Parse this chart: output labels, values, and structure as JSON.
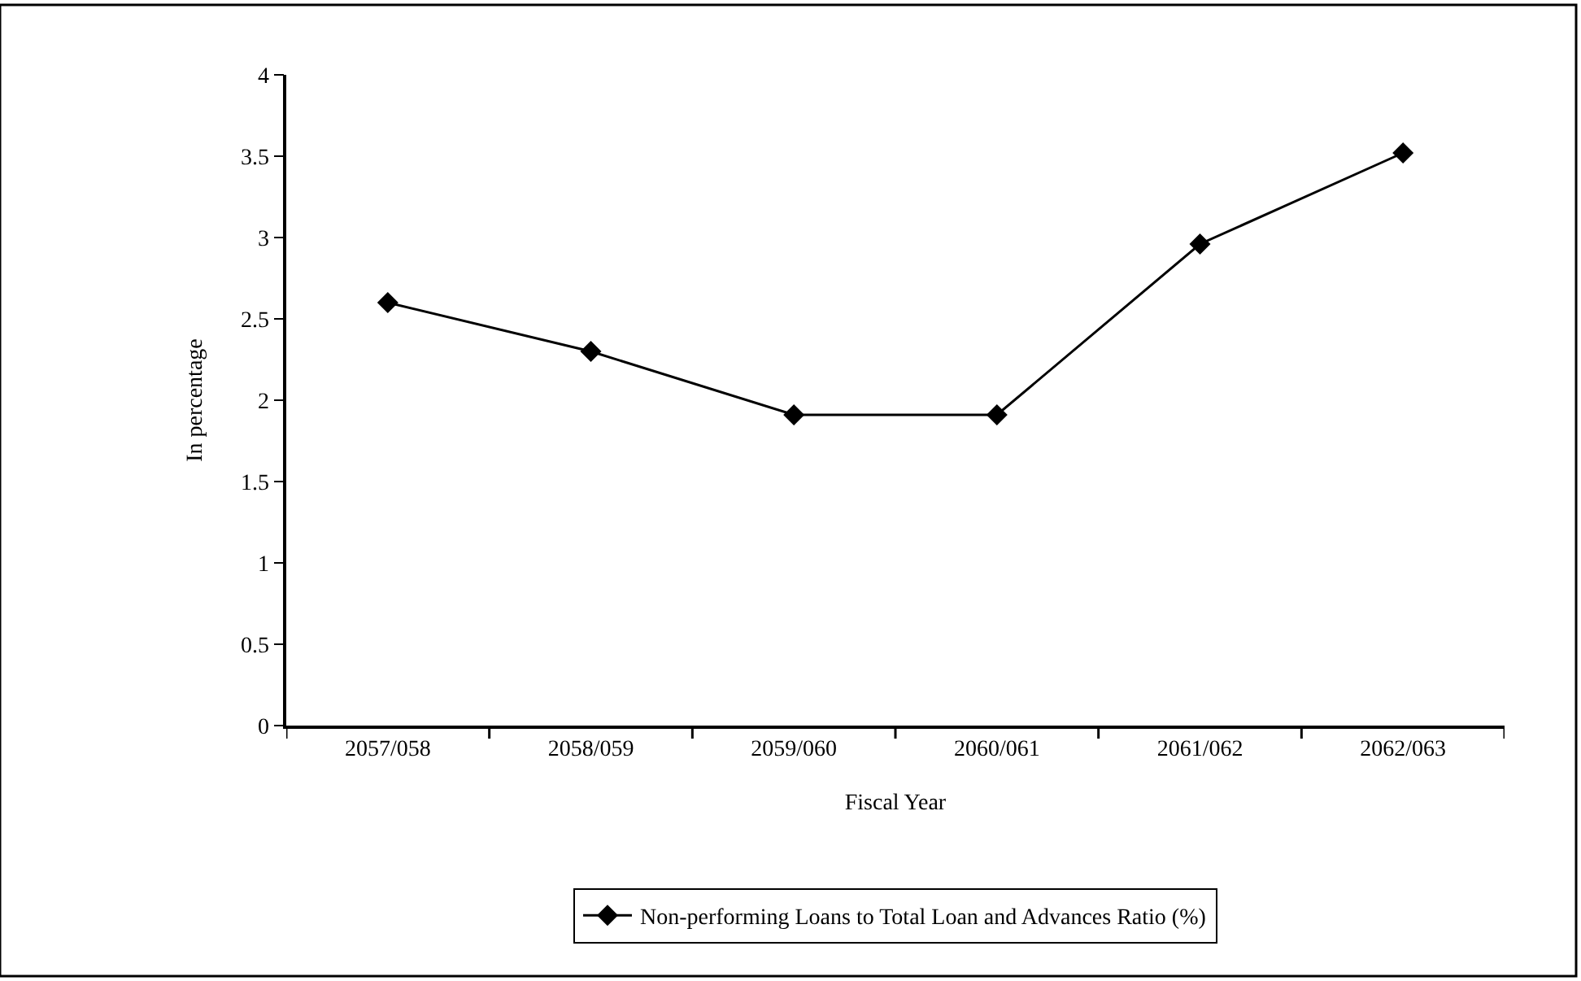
{
  "chart_data": {
    "type": "line",
    "xlabel": "Fiscal Year",
    "ylabel": "In percentage",
    "categories": [
      "2057/058",
      "2058/059",
      "2059/060",
      "2060/061",
      "2061/062",
      "2062/063"
    ],
    "series": [
      {
        "name": "Non-performing Loans to Total Loan and Advances Ratio (%)",
        "color": "#000000",
        "values": [
          2.6,
          2.3,
          1.91,
          1.91,
          2.96,
          3.52
        ]
      }
    ],
    "ylim": [
      0,
      4
    ],
    "yticks": [
      0,
      0.5,
      1,
      1.5,
      2,
      2.5,
      3,
      3.5,
      4
    ],
    "legend": "bottom",
    "marker": "diamond",
    "line_style": "solid"
  }
}
